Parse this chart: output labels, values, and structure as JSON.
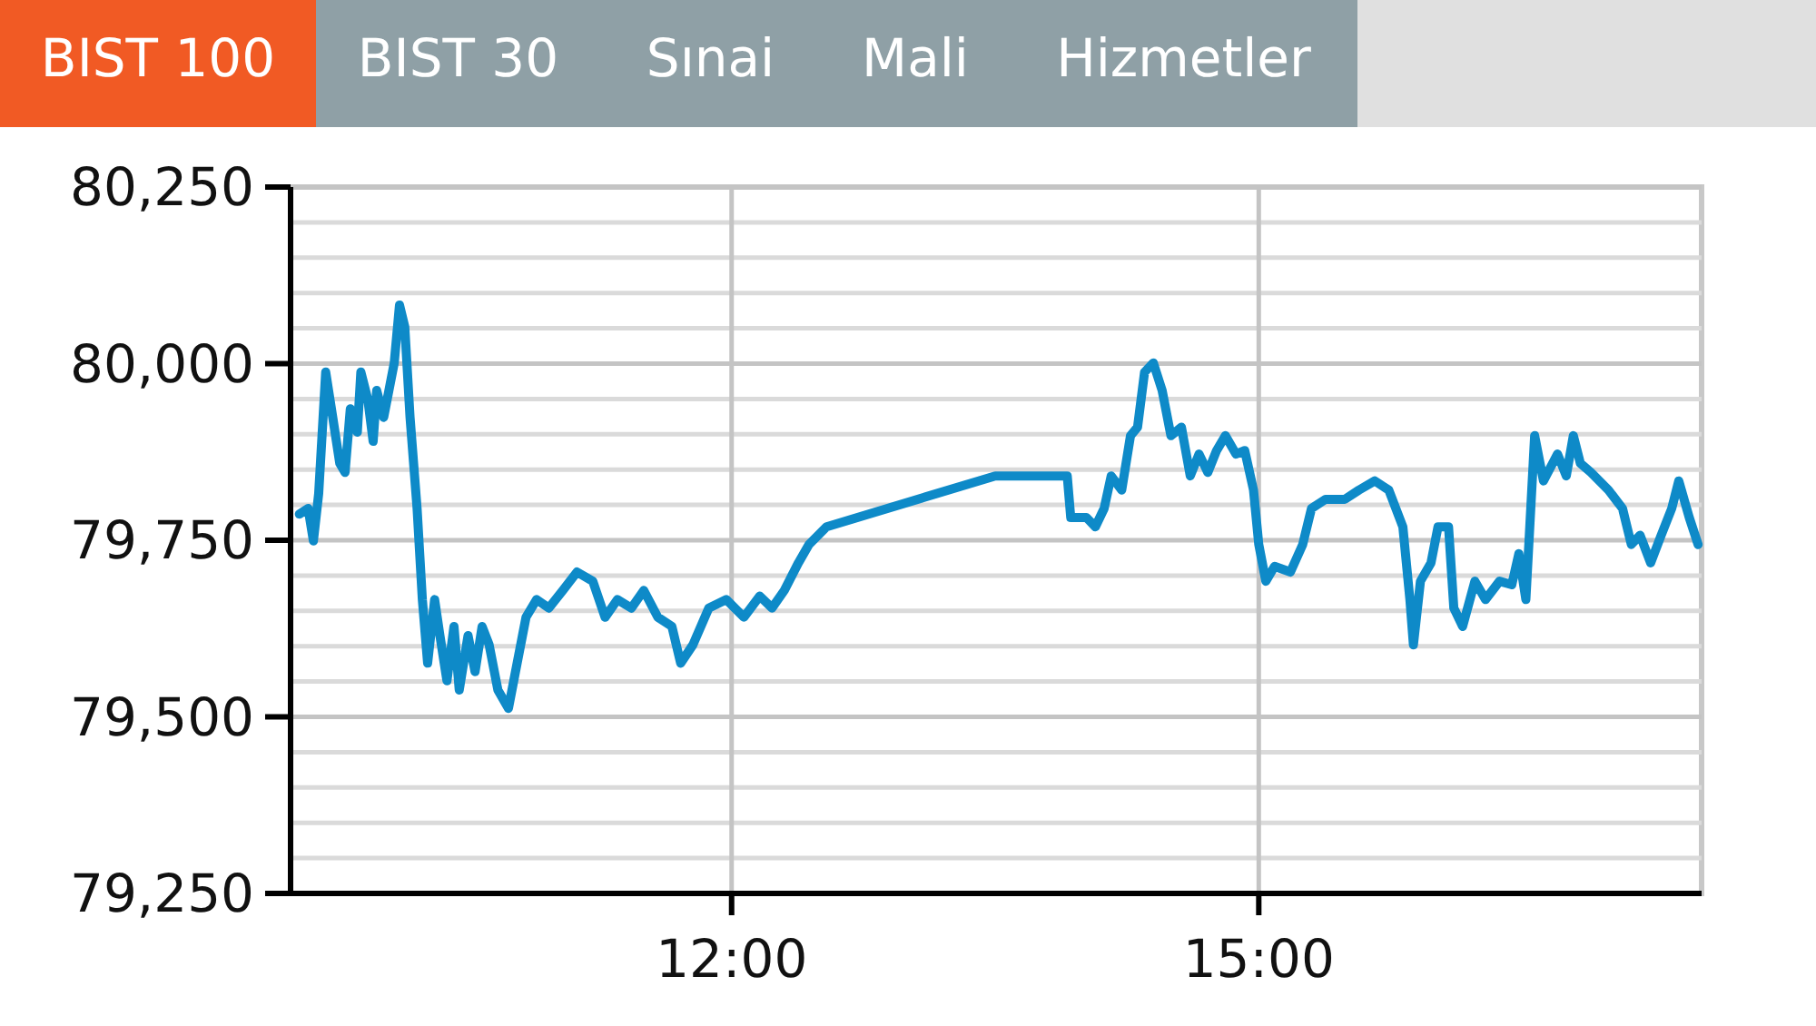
{
  "chart_data": {
    "type": "line",
    "annotations": [
      "BIST 100",
      "BIST 30",
      "Sınai",
      "Mali",
      "Hizmetler"
    ],
    "xlim": [
      9.49,
      17.52
    ],
    "xticks": [
      {
        "value": 12,
        "label": "12:00"
      },
      {
        "value": 15,
        "label": "15:00"
      }
    ],
    "ylim": [
      79250,
      80250
    ],
    "yticks": [
      {
        "value": 79250,
        "label": "79,250"
      },
      {
        "value": 79300,
        "label": null
      },
      {
        "value": 79350,
        "label": null
      },
      {
        "value": 79400,
        "label": null
      },
      {
        "value": 79450,
        "label": null
      },
      {
        "value": 79500,
        "label": "79,500"
      },
      {
        "value": 79550,
        "label": null
      },
      {
        "value": 79600,
        "label": null
      },
      {
        "value": 79650,
        "label": null
      },
      {
        "value": 79700,
        "label": null
      },
      {
        "value": 79750,
        "label": "79,750"
      },
      {
        "value": 79800,
        "label": null
      },
      {
        "value": 79850,
        "label": null
      },
      {
        "value": 79900,
        "label": null
      },
      {
        "value": 79950,
        "label": null
      },
      {
        "value": 80000,
        "label": "80,000"
      },
      {
        "value": 80050,
        "label": null
      },
      {
        "value": 80100,
        "label": null
      },
      {
        "value": 80150,
        "label": null
      },
      {
        "value": 80200,
        "label": null
      },
      {
        "value": 80250,
        "label": "80,250"
      }
    ],
    "grid": true,
    "marker": "none",
    "line_style": "solid",
    "series": [
      {
        "color": "#0e8ac8",
        "x": [
          9.54,
          9.59,
          9.62,
          9.65,
          9.69,
          9.73,
          9.77,
          9.8,
          9.83,
          9.87,
          9.89,
          9.93,
          9.96,
          9.98,
          10.02,
          10.08,
          10.11,
          10.14,
          10.17,
          10.21,
          10.24,
          10.27,
          10.31,
          10.34,
          10.38,
          10.42,
          10.45,
          10.5,
          10.54,
          10.58,
          10.62,
          10.67,
          10.73,
          10.77,
          10.83,
          10.89,
          10.96,
          11.04,
          11.12,
          11.21,
          11.28,
          11.35,
          11.43,
          11.5,
          11.58,
          11.66,
          11.71,
          11.78,
          11.87,
          11.97,
          12.07,
          12.16,
          12.23,
          12.3,
          12.38,
          12.44,
          12.54,
          13.5,
          13.91,
          13.93,
          14.02,
          14.07,
          14.12,
          14.16,
          14.22,
          14.27,
          14.31,
          14.35,
          14.4,
          14.45,
          14.5,
          14.56,
          14.61,
          14.66,
          14.71,
          14.76,
          14.81,
          14.87,
          14.92,
          14.97,
          15.0,
          15.04,
          15.09,
          15.18,
          15.25,
          15.3,
          15.38,
          15.49,
          15.57,
          15.66,
          15.74,
          15.82,
          15.86,
          15.88,
          15.92,
          15.98,
          16.02,
          16.08,
          16.11,
          16.16,
          16.23,
          16.29,
          16.37,
          16.44,
          16.48,
          16.52,
          16.57,
          16.62,
          16.7,
          16.75,
          16.79,
          16.83,
          16.89,
          16.99,
          17.07,
          17.12,
          17.17,
          17.23,
          17.29,
          17.35,
          17.39,
          17.45,
          17.5
        ],
        "values": [
          79787,
          79795,
          79749,
          79816,
          79988,
          79924,
          79859,
          79846,
          79936,
          79903,
          79988,
          79949,
          79890,
          79962,
          79924,
          80001,
          80083,
          80052,
          79924,
          79795,
          79666,
          79576,
          79666,
          79615,
          79551,
          79628,
          79538,
          79615,
          79564,
          79628,
          79602,
          79538,
          79512,
          79564,
          79641,
          79666,
          79654,
          79679,
          79705,
          79692,
          79641,
          79666,
          79654,
          79679,
          79641,
          79628,
          79576,
          79602,
          79654,
          79666,
          79641,
          79671,
          79654,
          79679,
          79718,
          79744,
          79769,
          79841,
          79841,
          79782,
          79782,
          79769,
          79795,
          79841,
          79821,
          79898,
          79910,
          79988,
          80001,
          79962,
          79898,
          79910,
          79841,
          79872,
          79846,
          79877,
          79898,
          79872,
          79877,
          79821,
          79744,
          79692,
          79713,
          79705,
          79744,
          79795,
          79808,
          79808,
          79821,
          79834,
          79821,
          79769,
          79666,
          79602,
          79692,
          79718,
          79769,
          79769,
          79654,
          79628,
          79692,
          79666,
          79692,
          79687,
          79731,
          79666,
          79898,
          79834,
          79872,
          79841,
          79898,
          79859,
          79846,
          79821,
          79795,
          79744,
          79757,
          79718,
          79757,
          79795,
          79834,
          79782,
          79744
        ]
      }
    ]
  }
}
